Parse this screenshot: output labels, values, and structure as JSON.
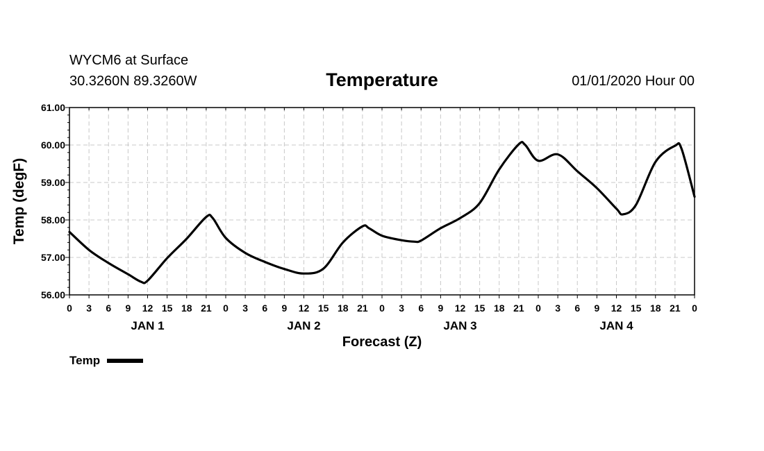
{
  "header": {
    "station": "WYCM6 at Surface",
    "coords": "30.3260N 89.3260W",
    "title": "Temperature",
    "runtime": "01/01/2020 Hour 00"
  },
  "chart_data": {
    "type": "line",
    "title": "Temperature",
    "xlabel": "Forecast (Z)",
    "ylabel": "Temp (degF)",
    "ylim": [
      56.0,
      61.0
    ],
    "xlim": [
      "01/01/2020 00Z",
      "01/05/2020 00Z"
    ],
    "grid": true,
    "legend_position": "bottom-left",
    "ytick_labels": [
      "56.00",
      "57.00",
      "58.00",
      "59.00",
      "60.00",
      "61.00"
    ],
    "xtick_labels": [
      "0",
      "3",
      "6",
      "9",
      "12",
      "15",
      "18",
      "21",
      "0",
      "3",
      "6",
      "9",
      "12",
      "15",
      "18",
      "21",
      "0",
      "3",
      "6",
      "9",
      "12",
      "15",
      "18",
      "21",
      "0",
      "3",
      "6",
      "9",
      "12",
      "15",
      "18",
      "21",
      "0"
    ],
    "day_labels": [
      "JAN 1",
      "JAN 2",
      "JAN 3",
      "JAN 4"
    ],
    "series": [
      {
        "name": "Temp",
        "color": "#000000",
        "x": [
          "01/01 00Z",
          "01/01 03Z",
          "01/01 06Z",
          "01/01 09Z",
          "01/01 11Z",
          "01/01 12Z",
          "01/01 15Z",
          "01/01 18Z",
          "01/01 21Z",
          "01/01 22Z",
          "01/02 00Z",
          "01/02 03Z",
          "01/02 06Z",
          "01/02 09Z",
          "01/02 12Z",
          "01/02 15Z",
          "01/02 18Z",
          "01/02 21Z",
          "01/02 22Z",
          "01/03 00Z",
          "01/03 03Z",
          "01/03 05Z",
          "01/03 06Z",
          "01/03 09Z",
          "01/03 12Z",
          "01/03 15Z",
          "01/03 18Z",
          "01/03 21Z",
          "01/03 22Z",
          "01/04 00Z",
          "01/04 03Z",
          "01/04 06Z",
          "01/04 09Z",
          "01/04 12Z",
          "01/04 13Z",
          "01/04 15Z",
          "01/04 18Z",
          "01/04 21Z",
          "01/04 22Z",
          "01/05 00Z"
        ],
        "values": [
          57.68,
          57.2,
          56.85,
          56.55,
          56.35,
          56.38,
          56.98,
          57.5,
          58.08,
          58.05,
          57.52,
          57.12,
          56.88,
          56.69,
          56.57,
          56.7,
          57.4,
          57.83,
          57.78,
          57.58,
          57.46,
          57.42,
          57.45,
          57.78,
          58.05,
          58.45,
          59.35,
          60.02,
          60.0,
          59.58,
          59.75,
          59.3,
          58.85,
          58.3,
          58.15,
          58.4,
          59.55,
          59.98,
          59.9,
          58.62
        ]
      }
    ]
  },
  "legend": {
    "label": "Temp"
  }
}
